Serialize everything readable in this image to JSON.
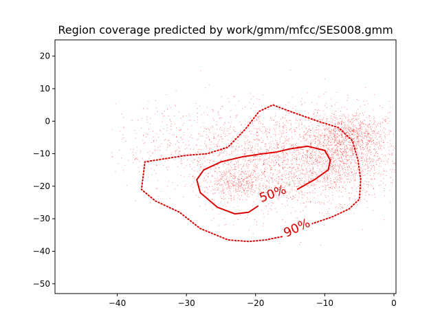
{
  "chart_data": {
    "type": "scatter",
    "title": "Region coverage predicted by work/gmm/mfcc/SES008.gmm",
    "xlabel": "",
    "ylabel": "",
    "xlim": [
      -49,
      0.3
    ],
    "ylim": [
      -53,
      25
    ],
    "xticks": [
      -40,
      -30,
      -20,
      -10,
      0
    ],
    "xtick_labels": [
      "−40",
      "−30",
      "−20",
      "−10",
      "0"
    ],
    "yticks": [
      -50,
      -40,
      -30,
      -20,
      -10,
      0,
      10,
      20
    ],
    "ytick_labels": [
      "−50",
      "−40",
      "−30",
      "−20",
      "−10",
      "0",
      "10",
      "20"
    ],
    "grid": false,
    "colors": {
      "points": "#ff0000",
      "contour": "#dd0000"
    },
    "scatter_clusters": [
      {
        "cx": -8,
        "cy": -10,
        "sx": 4.5,
        "sy": 7,
        "weight": 0.38
      },
      {
        "cx": -17,
        "cy": -13,
        "sx": 5.5,
        "sy": 8,
        "weight": 0.3
      },
      {
        "cx": -23,
        "cy": -19,
        "sx": 2.2,
        "sy": 2.2,
        "weight": 0.08
      },
      {
        "cx": -28,
        "cy": -8,
        "sx": 7,
        "sy": 7,
        "weight": 0.14
      },
      {
        "cx": -6,
        "cy": -4,
        "sx": 2,
        "sy": 3,
        "weight": 0.1
      }
    ],
    "contours": [
      {
        "level": "50%",
        "label": "50%",
        "style": "solid",
        "label_at": [
          -17.5,
          -22.5
        ],
        "label_rotation": -20,
        "points": [
          [
            -14,
            -21
          ],
          [
            -11.5,
            -18
          ],
          [
            -9.5,
            -15
          ],
          [
            -9.2,
            -12
          ],
          [
            -10,
            -9
          ],
          [
            -12.5,
            -7.7
          ],
          [
            -15,
            -8.5
          ],
          [
            -17,
            -9.5
          ],
          [
            -19,
            -10
          ],
          [
            -22,
            -11
          ],
          [
            -25,
            -12.5
          ],
          [
            -27.5,
            -15
          ],
          [
            -28.5,
            -18
          ],
          [
            -28,
            -22
          ],
          [
            -25.5,
            -26.5
          ],
          [
            -23,
            -28.5
          ],
          [
            -21,
            -28
          ],
          [
            -19.6,
            -26
          ]
        ]
      },
      {
        "level": "90%",
        "label": "90%",
        "style": "dotted",
        "label_at": [
          -14,
          -33
        ],
        "label_rotation": -25,
        "points": [
          [
            -16.2,
            -35.5
          ],
          [
            -18.5,
            -36.5
          ],
          [
            -21,
            -37
          ],
          [
            -24,
            -36.5
          ],
          [
            -28,
            -33
          ],
          [
            -31,
            -28
          ],
          [
            -34.5,
            -24.5
          ],
          [
            -36.5,
            -21
          ],
          [
            -36,
            -12.5
          ],
          [
            -33,
            -11.5
          ],
          [
            -30,
            -10.5
          ],
          [
            -27,
            -10
          ],
          [
            -24,
            -8
          ],
          [
            -21.5,
            -2.5
          ],
          [
            -19.5,
            3
          ],
          [
            -17.5,
            5
          ],
          [
            -15,
            3
          ],
          [
            -11,
            0
          ],
          [
            -8,
            -2
          ],
          [
            -6,
            -6
          ],
          [
            -5.2,
            -12
          ],
          [
            -4.8,
            -18
          ],
          [
            -5,
            -24
          ],
          [
            -6.5,
            -27
          ],
          [
            -9,
            -29.5
          ],
          [
            -11.8,
            -31.5
          ]
        ]
      }
    ],
    "n_points": 4200
  }
}
